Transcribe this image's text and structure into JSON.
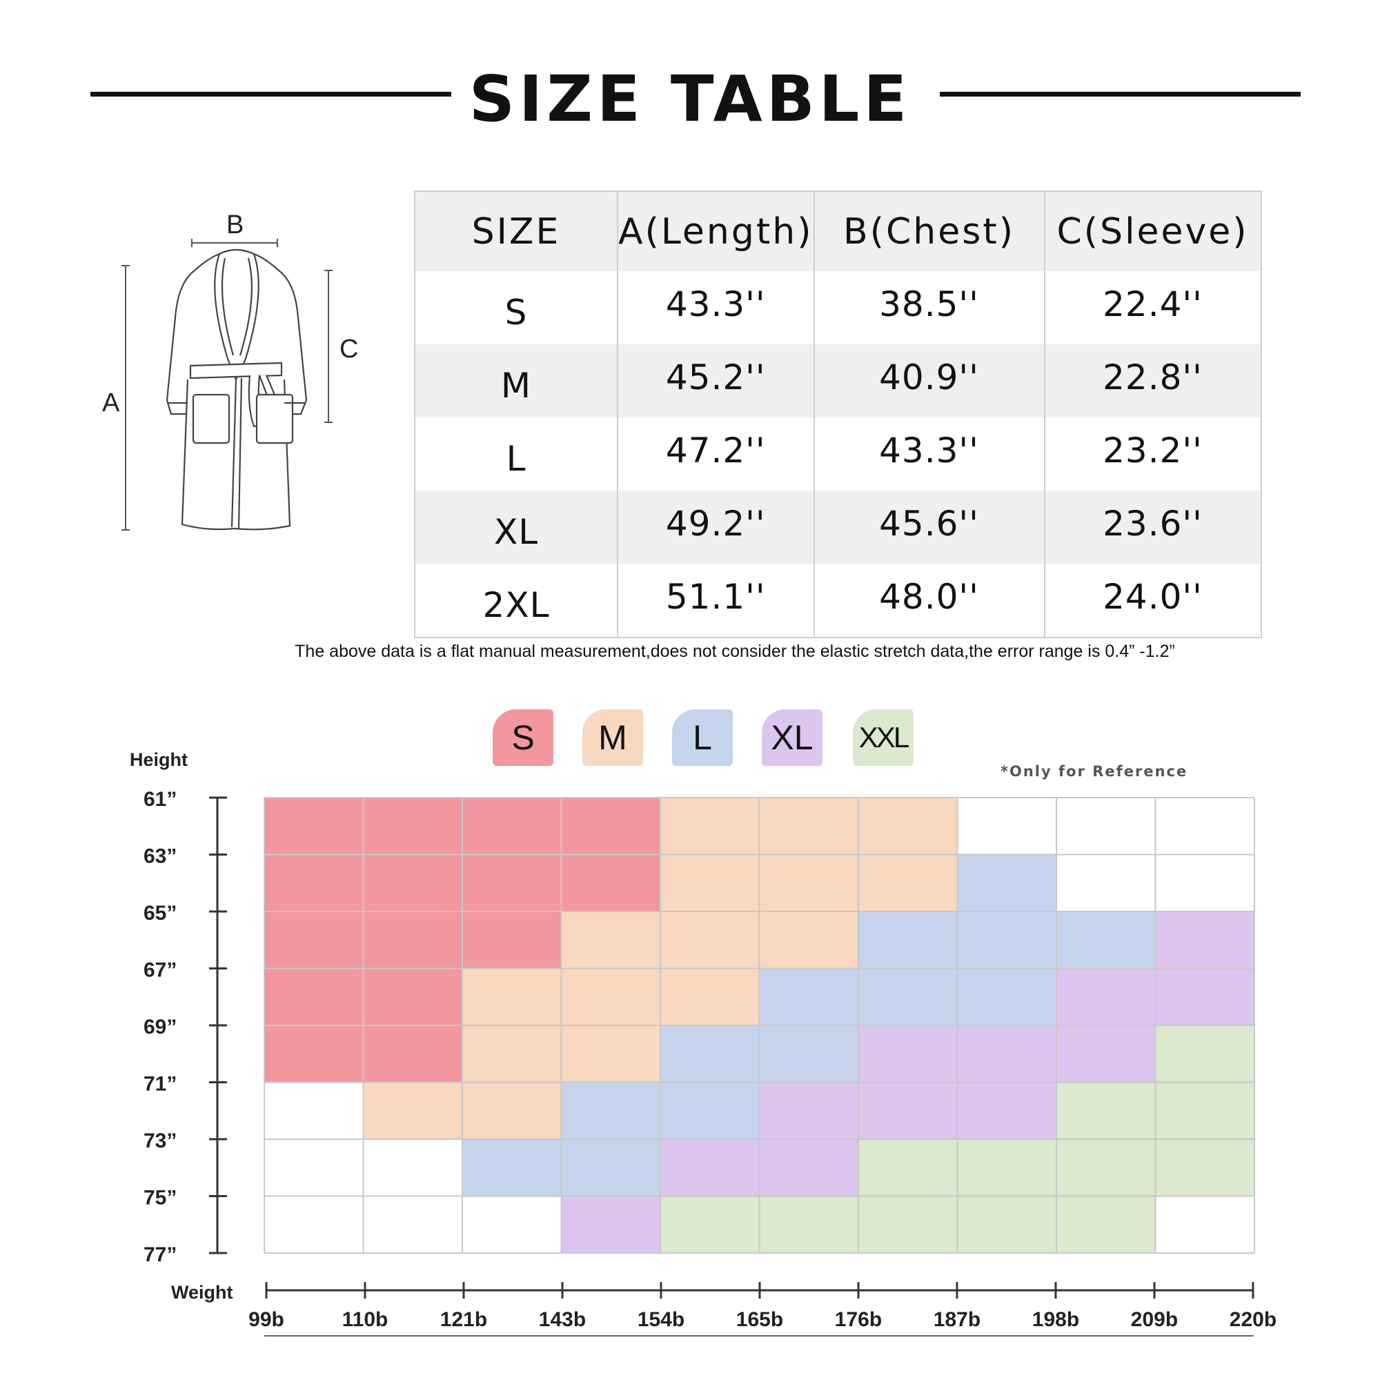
{
  "title": "SIZE TABLE",
  "diagram": {
    "label_a": "A",
    "label_b": "B",
    "label_c": "C"
  },
  "size_table": {
    "headers": [
      "SIZE",
      "A(Length)",
      "B(Chest)",
      "C(Sleeve)"
    ],
    "rows": [
      [
        "S",
        "43.3''",
        "38.5''",
        "22.4''"
      ],
      [
        "M",
        "45.2''",
        "40.9''",
        "22.8''"
      ],
      [
        "L",
        "47.2''",
        "43.3''",
        "23.2''"
      ],
      [
        "XL",
        "49.2''",
        "45.6''",
        "23.6''"
      ],
      [
        "2XL",
        "51.1''",
        "48.0''",
        "24.0''"
      ]
    ]
  },
  "note": "The above data is a flat manual measurement,does not consider the elastic stretch data,the error range is 0.4” -1.2”",
  "legend": [
    {
      "label": "S",
      "color": "#f2969f"
    },
    {
      "label": "M",
      "color": "#f9d8c0"
    },
    {
      "label": "L",
      "color": "#c6d3ec"
    },
    {
      "label": "XL",
      "color": "#dcc5ef"
    },
    {
      "label": "XXL",
      "color": "#dbe9cf"
    }
  ],
  "reference_note": "*Only for Reference",
  "chart_data": {
    "type": "heatmap",
    "ylabel": "Height",
    "xlabel": "Weight",
    "y_ticks": [
      "61”",
      "63”",
      "65”",
      "67”",
      "69”",
      "71”",
      "73”",
      "75”",
      "77”"
    ],
    "x_ticks": [
      "99b",
      "110b",
      "121b",
      "143b",
      "154b",
      "165b",
      "176b",
      "187b",
      "198b",
      "209b",
      "220b"
    ],
    "grid": [
      [
        "S",
        "S",
        "S",
        "S",
        "M",
        "M",
        "M",
        "",
        "",
        ""
      ],
      [
        "S",
        "S",
        "S",
        "S",
        "M",
        "M",
        "M",
        "L",
        "",
        ""
      ],
      [
        "S",
        "S",
        "S",
        "M",
        "M",
        "M",
        "L",
        "L",
        "L",
        "XL"
      ],
      [
        "S",
        "S",
        "M",
        "M",
        "M",
        "L",
        "L",
        "L",
        "XL",
        "XL"
      ],
      [
        "S",
        "S",
        "M",
        "M",
        "L",
        "L",
        "XL",
        "XL",
        "XL",
        "XXL"
      ],
      [
        "",
        "M",
        "M",
        "L",
        "L",
        "XL",
        "XL",
        "XL",
        "XXL",
        "XXL"
      ],
      [
        "",
        "",
        "L",
        "L",
        "XL",
        "XL",
        "XXL",
        "XXL",
        "XXL",
        "XXL"
      ],
      [
        "",
        "",
        "",
        "XL",
        "XXL",
        "XXL",
        "XXL",
        "XXL",
        "XXL",
        ""
      ]
    ]
  }
}
